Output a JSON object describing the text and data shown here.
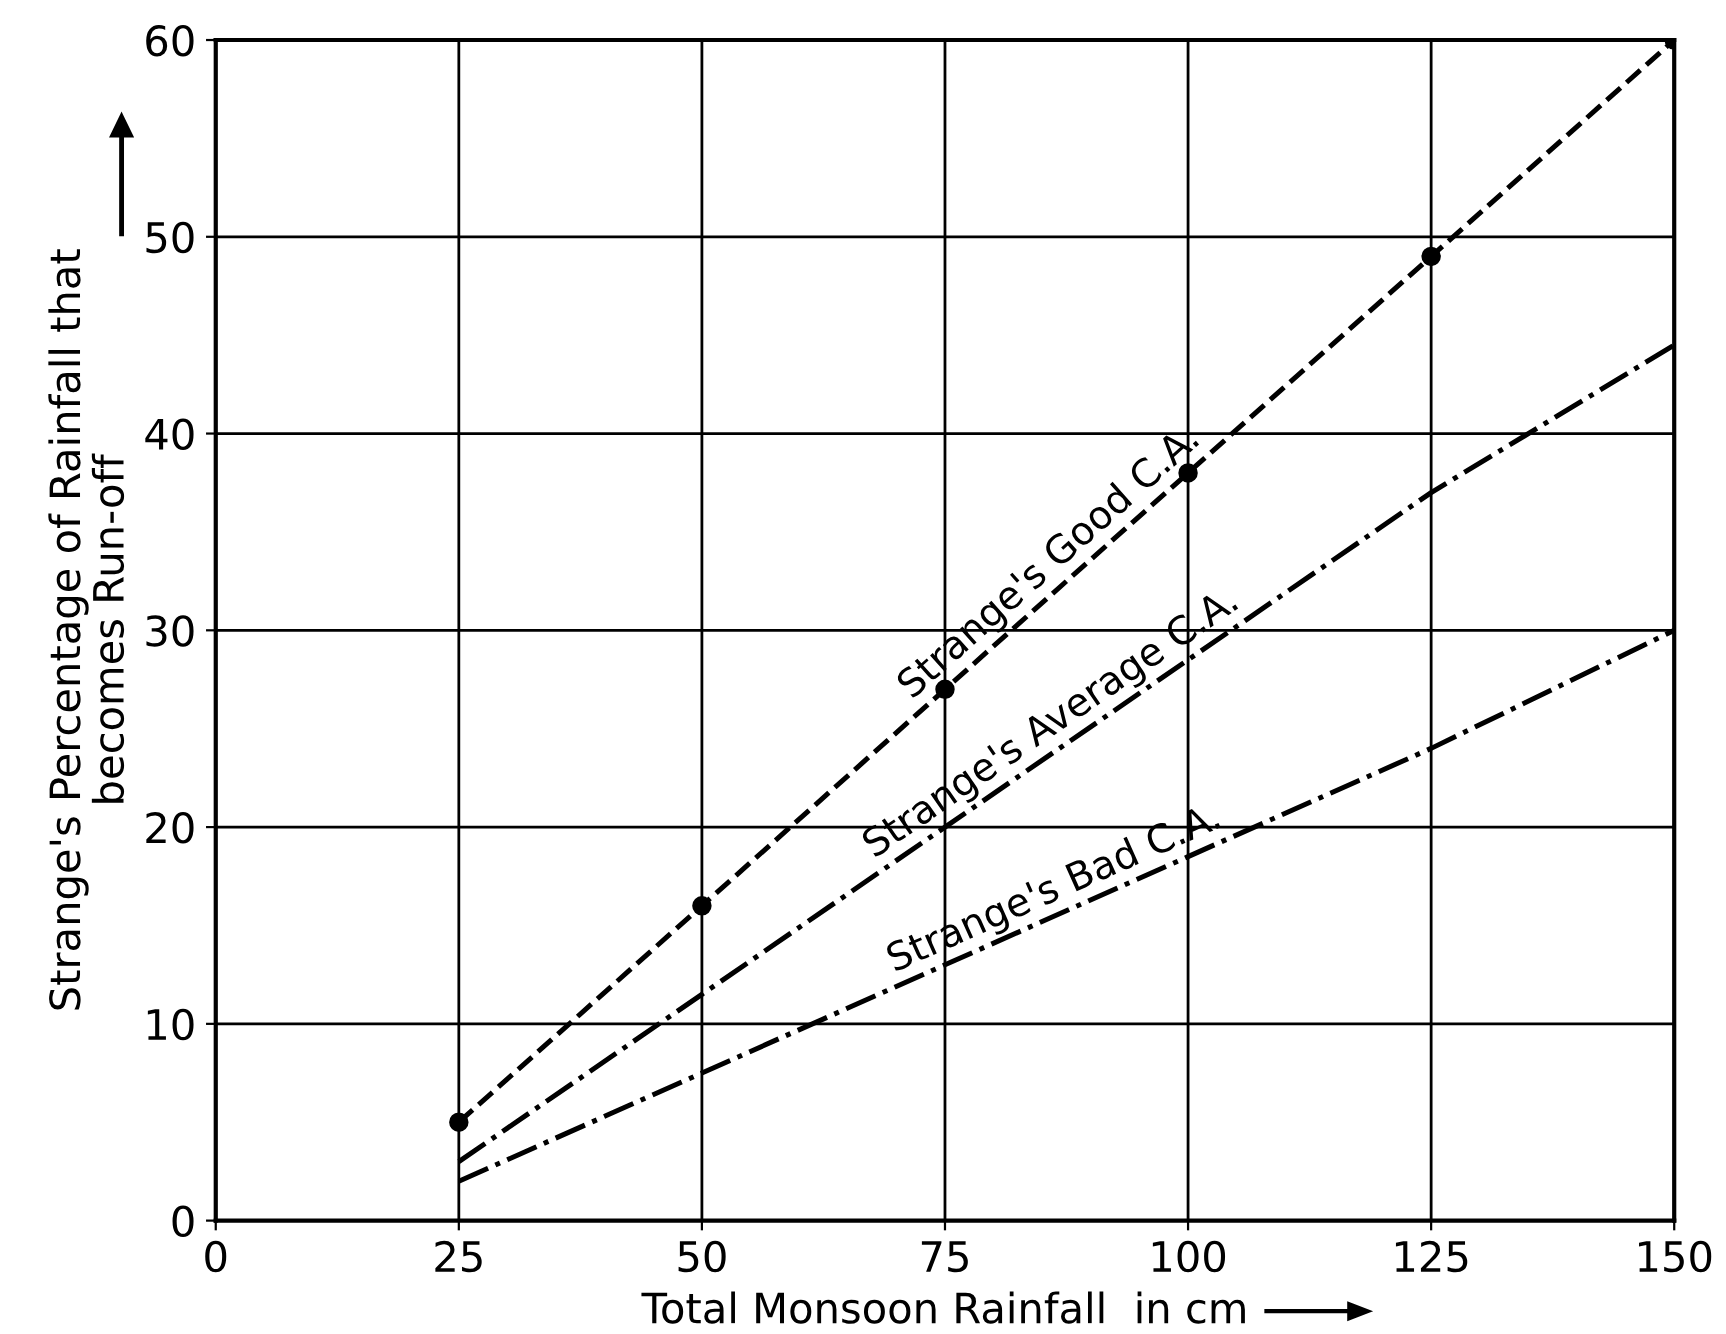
{
  "chart_data": {
    "type": "line",
    "xlabel": "Total Monsoon Rainfall  in cm",
    "ylabel": "Strange's Percentage of Rainfall that\nbecomes Run-off",
    "x": [
      25,
      50,
      75,
      100,
      125,
      150
    ],
    "series": [
      {
        "name": "Strange's Good C.A.",
        "color": "#000000",
        "line_style": "dashed",
        "marker": "circle",
        "values": [
          5,
          16,
          27,
          38,
          49,
          60
        ]
      },
      {
        "name": "Strange's Average C.A.",
        "color": "#000000",
        "line_style": "dashdot",
        "marker": "none",
        "values": [
          3,
          11.5,
          20,
          28.5,
          37,
          44.5
        ]
      },
      {
        "name": "Strange's Bad C.A.",
        "color": "#000000",
        "line_style": "dashdot",
        "marker": "none",
        "values": [
          2,
          7.5,
          13,
          18.5,
          24,
          30
        ]
      }
    ],
    "xlim": [
      0,
      150
    ],
    "ylim": [
      0,
      60
    ],
    "xticks": [
      0,
      25,
      50,
      75,
      100,
      125,
      150
    ],
    "yticks": [
      0,
      10,
      20,
      30,
      40,
      50,
      60
    ],
    "grid": true,
    "legend": false
  }
}
